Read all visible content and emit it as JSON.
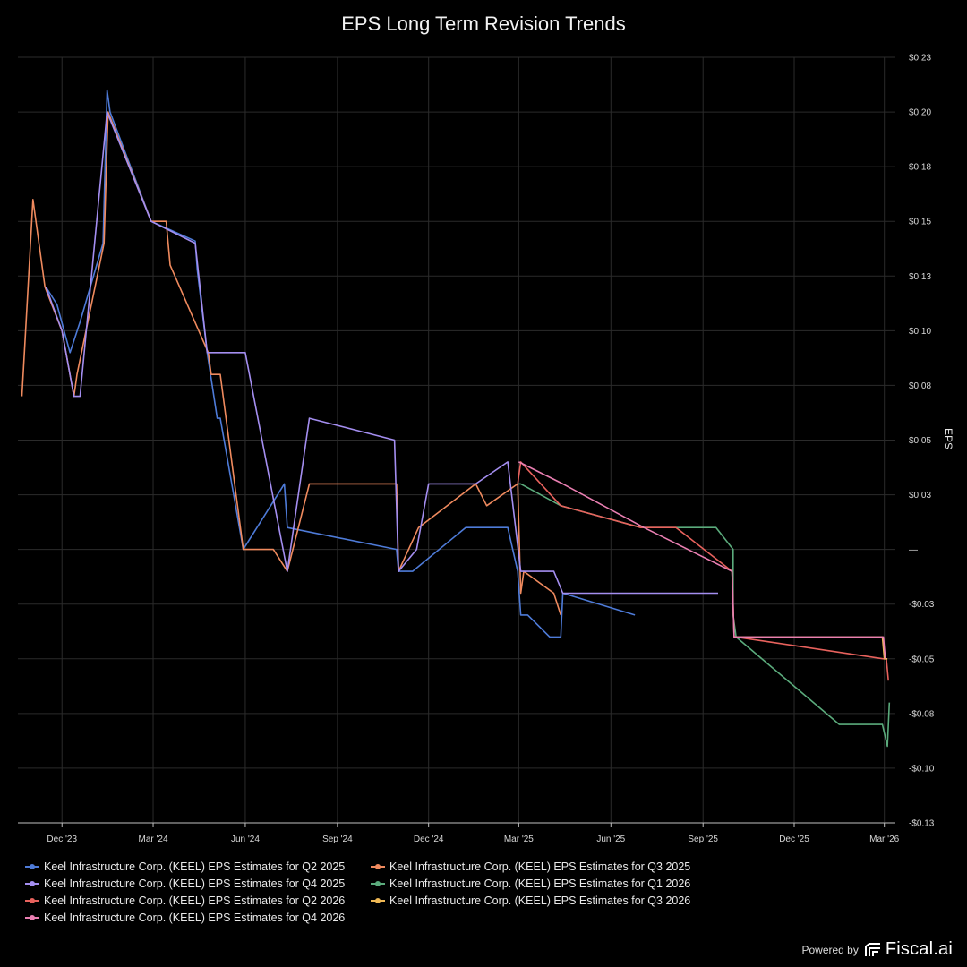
{
  "chart_data": {
    "type": "line",
    "title": "EPS Long Term Revision Trends",
    "ylabel": "EPS",
    "ylim": [
      -0.125,
      0.225
    ],
    "y_ticks": [
      {
        "v": 0.225,
        "label": "$0.23"
      },
      {
        "v": 0.2,
        "label": "$0.20"
      },
      {
        "v": 0.175,
        "label": "$0.18"
      },
      {
        "v": 0.15,
        "label": "$0.15"
      },
      {
        "v": 0.125,
        "label": "$0.13"
      },
      {
        "v": 0.1,
        "label": "$0.10"
      },
      {
        "v": 0.075,
        "label": "$0.08"
      },
      {
        "v": 0.05,
        "label": "$0.05"
      },
      {
        "v": 0.025,
        "label": "$0.03"
      },
      {
        "v": 0,
        "label": "—"
      },
      {
        "v": -0.025,
        "label": "-$0.03"
      },
      {
        "v": -0.05,
        "label": "-$0.05"
      },
      {
        "v": -0.075,
        "label": "-$0.08"
      },
      {
        "v": -0.1,
        "label": "-$0.10"
      },
      {
        "v": -0.125,
        "label": "-$0.13"
      }
    ],
    "xlim": [
      "2023-10-18",
      "2026-03-12"
    ],
    "x_ticks": [
      {
        "date": "2023-12-01",
        "label": "Dec '23"
      },
      {
        "date": "2024-03-01",
        "label": "Mar '24"
      },
      {
        "date": "2024-06-01",
        "label": "Jun '24"
      },
      {
        "date": "2024-09-01",
        "label": "Sep '24"
      },
      {
        "date": "2024-12-01",
        "label": "Dec '24"
      },
      {
        "date": "2025-03-01",
        "label": "Mar '25"
      },
      {
        "date": "2025-06-01",
        "label": "Jun '25"
      },
      {
        "date": "2025-09-01",
        "label": "Sep '25"
      },
      {
        "date": "2025-12-01",
        "label": "Dec '25"
      },
      {
        "date": "2026-03-01",
        "label": "Mar '26"
      }
    ],
    "grid": true,
    "legend_position": "bottom",
    "series": [
      {
        "name": "Keel Infrastructure Corp. (KEEL) EPS Estimates for Q2 2025",
        "color": "#4e7bd8",
        "points": [
          [
            "2023-11-15",
            0.12
          ],
          [
            "2023-11-26",
            0.112
          ],
          [
            "2023-12-09",
            0.09
          ],
          [
            "2023-12-19",
            0.104
          ],
          [
            "2024-01-11",
            0.14
          ],
          [
            "2024-01-15",
            0.21
          ],
          [
            "2024-01-18",
            0.2
          ],
          [
            "2024-02-28",
            0.15
          ],
          [
            "2024-04-12",
            0.141
          ],
          [
            "2024-04-14",
            0.128
          ],
          [
            "2024-04-24",
            0.09
          ],
          [
            "2024-05-04",
            0.06
          ],
          [
            "2024-05-07",
            0.06
          ],
          [
            "2024-05-30",
            0.0
          ],
          [
            "2024-07-10",
            0.03
          ],
          [
            "2024-07-13",
            0.01
          ],
          [
            "2024-10-30",
            0.0
          ],
          [
            "2024-11-01",
            -0.01
          ],
          [
            "2024-11-15",
            -0.01
          ],
          [
            "2025-01-07",
            0.01
          ],
          [
            "2025-02-18",
            0.01
          ],
          [
            "2025-02-28",
            -0.01
          ],
          [
            "2025-03-03",
            -0.03
          ],
          [
            "2025-03-10",
            -0.03
          ],
          [
            "2025-04-01",
            -0.04
          ],
          [
            "2025-04-12",
            -0.04
          ],
          [
            "2025-04-14",
            -0.02
          ],
          [
            "2025-06-25",
            -0.03
          ]
        ]
      },
      {
        "name": "Keel Infrastructure Corp. (KEEL) EPS Estimates for Q3 2025",
        "color": "#ef8a5e",
        "points": [
          [
            "2023-10-22",
            0.07
          ],
          [
            "2023-11-02",
            0.16
          ],
          [
            "2023-11-14",
            0.12
          ],
          [
            "2023-12-01",
            0.1
          ],
          [
            "2023-12-13",
            0.07
          ],
          [
            "2023-12-16",
            0.08
          ],
          [
            "2024-01-12",
            0.14
          ],
          [
            "2024-01-16",
            0.2
          ],
          [
            "2024-02-28",
            0.15
          ],
          [
            "2024-03-10",
            0.15
          ],
          [
            "2024-03-14",
            0.15
          ],
          [
            "2024-03-18",
            0.13
          ],
          [
            "2024-04-25",
            0.09
          ],
          [
            "2024-04-28",
            0.08
          ],
          [
            "2024-05-07",
            0.08
          ],
          [
            "2024-05-30",
            0.0
          ],
          [
            "2024-06-29",
            0.0
          ],
          [
            "2024-07-13",
            -0.01
          ],
          [
            "2024-08-04",
            0.03
          ],
          [
            "2024-10-30",
            0.03
          ],
          [
            "2024-11-01",
            -0.01
          ],
          [
            "2024-11-21",
            0.01
          ],
          [
            "2025-01-17",
            0.03
          ],
          [
            "2025-01-28",
            0.02
          ],
          [
            "2025-02-28",
            0.03
          ],
          [
            "2025-03-03",
            -0.02
          ],
          [
            "2025-03-06",
            -0.01
          ],
          [
            "2025-04-05",
            -0.02
          ],
          [
            "2025-04-12",
            -0.03
          ]
        ]
      },
      {
        "name": "Keel Infrastructure Corp. (KEEL) EPS Estimates for Q4 2025",
        "color": "#a48ef0",
        "points": [
          [
            "2023-11-15",
            0.12
          ],
          [
            "2023-12-01",
            0.1
          ],
          [
            "2023-12-13",
            0.07
          ],
          [
            "2023-12-19",
            0.07
          ],
          [
            "2024-01-15",
            0.2
          ],
          [
            "2024-02-28",
            0.15
          ],
          [
            "2024-04-12",
            0.14
          ],
          [
            "2024-04-24",
            0.09
          ],
          [
            "2024-06-01",
            0.09
          ],
          [
            "2024-07-13",
            -0.01
          ],
          [
            "2024-08-04",
            0.06
          ],
          [
            "2024-10-28",
            0.05
          ],
          [
            "2024-11-01",
            -0.01
          ],
          [
            "2024-11-19",
            0.0
          ],
          [
            "2024-12-01",
            0.03
          ],
          [
            "2025-01-17",
            0.03
          ],
          [
            "2025-02-18",
            0.04
          ],
          [
            "2025-03-03",
            -0.01
          ],
          [
            "2025-03-15",
            -0.01
          ],
          [
            "2025-04-05",
            -0.01
          ],
          [
            "2025-04-14",
            -0.02
          ],
          [
            "2025-06-30",
            -0.02
          ],
          [
            "2025-07-23",
            -0.02
          ],
          [
            "2025-09-04",
            -0.02
          ],
          [
            "2025-09-09",
            -0.02
          ],
          [
            "2025-09-16",
            -0.02
          ]
        ]
      },
      {
        "name": "Keel Infrastructure Corp. (KEEL) EPS Estimates for Q1 2026",
        "color": "#5bab7c",
        "points": [
          [
            "2025-02-28",
            0.03
          ],
          [
            "2025-03-03",
            0.03
          ],
          [
            "2025-04-12",
            0.02
          ],
          [
            "2025-07-01",
            0.01
          ],
          [
            "2025-09-14",
            0.01
          ],
          [
            "2025-10-01",
            0.0
          ],
          [
            "2025-10-01",
            -0.03
          ],
          [
            "2025-10-04",
            -0.04
          ],
          [
            "2026-01-15",
            -0.08
          ],
          [
            "2026-02-27",
            -0.08
          ],
          [
            "2026-03-04",
            -0.09
          ],
          [
            "2026-03-06",
            -0.07
          ]
        ]
      },
      {
        "name": "Keel Infrastructure Corp. (KEEL) EPS Estimates for Q2 2026",
        "color": "#e8625d",
        "points": [
          [
            "2025-02-28",
            0.03
          ],
          [
            "2025-03-03",
            0.04
          ],
          [
            "2025-04-12",
            0.02
          ],
          [
            "2025-07-01",
            0.01
          ],
          [
            "2025-08-05",
            0.01
          ],
          [
            "2025-09-30",
            -0.01
          ],
          [
            "2025-10-02",
            -0.04
          ],
          [
            "2025-10-04",
            -0.04
          ],
          [
            "2026-02-28",
            -0.05
          ],
          [
            "2026-03-03",
            -0.05
          ],
          [
            "2026-03-05",
            -0.06
          ]
        ]
      },
      {
        "name": "Keel Infrastructure Corp. (KEEL) EPS Estimates for Q3 2026",
        "color": "#f0b955",
        "points": [
          [
            "2025-10-02",
            -0.04
          ],
          [
            "2026-02-27",
            -0.04
          ],
          [
            "2026-03-01",
            -0.05
          ],
          [
            "2026-03-04",
            -0.05
          ]
        ]
      },
      {
        "name": "Keel Infrastructure Corp. (KEEL) EPS Estimates for Q4 2026",
        "color": "#ea7fb2",
        "points": [
          [
            "2025-03-01",
            0.04
          ],
          [
            "2025-04-14",
            0.03
          ],
          [
            "2025-07-04",
            0.01
          ],
          [
            "2025-09-30",
            -0.01
          ],
          [
            "2025-10-02",
            -0.04
          ],
          [
            "2026-02-28",
            -0.04
          ],
          [
            "2026-03-02",
            -0.05
          ]
        ]
      }
    ]
  },
  "legend_order": [
    0,
    1,
    2,
    3,
    4,
    5,
    6
  ],
  "footer": {
    "powered_label": "Powered by",
    "brand_name": "Fiscal.ai",
    "brand_icon": "fiscal-logo-icon"
  }
}
